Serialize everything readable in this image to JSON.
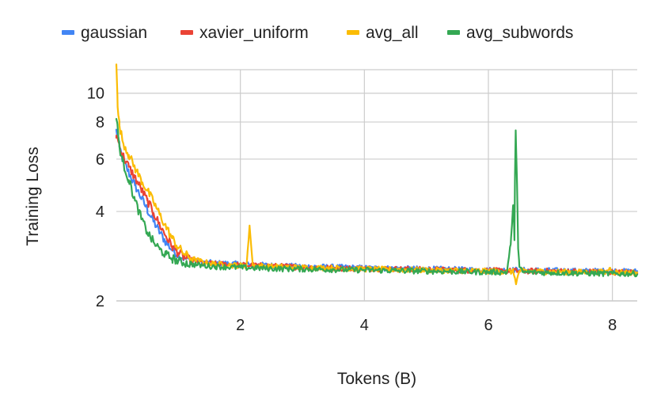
{
  "chart_data": {
    "type": "line",
    "xlabel": "Tokens (B)",
    "ylabel": "Training Loss",
    "xlim": [
      0,
      8.4
    ],
    "ylim": [
      2,
      12
    ],
    "y_scale": "log",
    "grid": true,
    "legend_position": "top",
    "x_ticks": [
      2,
      4,
      6,
      8
    ],
    "x_tick_labels": [
      "2",
      "4",
      "6",
      "8"
    ],
    "y_ticks": [
      2,
      4,
      6,
      8,
      10
    ],
    "y_tick_labels": [
      "2",
      "4",
      "6",
      "8",
      "10"
    ],
    "series": [
      {
        "name": "gaussian",
        "color": "#4285f4",
        "x": [
          0,
          0.05,
          0.1,
          0.2,
          0.3,
          0.4,
          0.5,
          0.6,
          0.7,
          0.8,
          0.9,
          1.0,
          1.1,
          1.2,
          1.4,
          1.6,
          2.0,
          2.5,
          3.0,
          3.5,
          4.0,
          4.5,
          5.0,
          5.5,
          6.0,
          6.5,
          7.0,
          7.5,
          8.0,
          8.4
        ],
        "y": [
          7.5,
          6.6,
          6.0,
          5.4,
          4.9,
          4.45,
          4.05,
          3.7,
          3.4,
          3.15,
          2.97,
          2.86,
          2.78,
          2.74,
          2.7,
          2.68,
          2.66,
          2.63,
          2.61,
          2.6,
          2.58,
          2.57,
          2.56,
          2.55,
          2.54,
          2.54,
          2.53,
          2.52,
          2.52,
          2.51
        ]
      },
      {
        "name": "xavier_uniform",
        "color": "#ea4335",
        "x": [
          0,
          0.05,
          0.1,
          0.2,
          0.3,
          0.4,
          0.5,
          0.6,
          0.7,
          0.8,
          0.9,
          1.0,
          1.1,
          1.2,
          1.4,
          1.6,
          2.0,
          2.5,
          3.0,
          3.5,
          4.0,
          4.5,
          5.0,
          5.5,
          6.0,
          6.5,
          7.0,
          7.5,
          8.0,
          8.4
        ],
        "y": [
          7.2,
          6.7,
          6.2,
          5.65,
          5.2,
          4.75,
          4.35,
          3.95,
          3.6,
          3.3,
          3.05,
          2.9,
          2.8,
          2.74,
          2.69,
          2.66,
          2.64,
          2.62,
          2.6,
          2.58,
          2.57,
          2.56,
          2.55,
          2.54,
          2.53,
          2.52,
          2.52,
          2.51,
          2.5,
          2.5
        ]
      },
      {
        "name": "avg_all",
        "color": "#fbbc04",
        "x": [
          0,
          0.02,
          0.05,
          0.1,
          0.2,
          0.3,
          0.4,
          0.5,
          0.6,
          0.7,
          0.8,
          0.9,
          1.0,
          1.1,
          1.2,
          1.4,
          1.6,
          2.0,
          2.1,
          2.15,
          2.2,
          2.5,
          3.0,
          3.5,
          4.0,
          4.5,
          5.0,
          5.5,
          6.0,
          6.4,
          6.45,
          6.5,
          7.0,
          7.5,
          7.9,
          7.95,
          8.0,
          8.4
        ],
        "y": [
          12.5,
          9.0,
          7.8,
          6.9,
          6.2,
          5.6,
          5.1,
          4.7,
          4.3,
          3.9,
          3.55,
          3.25,
          3.02,
          2.88,
          2.78,
          2.7,
          2.66,
          2.63,
          2.63,
          3.55,
          2.63,
          2.61,
          2.59,
          2.58,
          2.56,
          2.55,
          2.54,
          2.53,
          2.52,
          2.51,
          2.3,
          2.52,
          2.51,
          2.5,
          2.5,
          2.58,
          2.5,
          2.49
        ]
      },
      {
        "name": "avg_subwords",
        "color": "#34a853",
        "x": [
          0,
          0.05,
          0.1,
          0.2,
          0.3,
          0.4,
          0.5,
          0.6,
          0.7,
          0.8,
          0.9,
          1.0,
          1.2,
          1.4,
          1.6,
          2.0,
          2.5,
          3.0,
          3.5,
          4.0,
          4.5,
          5.0,
          5.5,
          6.0,
          6.3,
          6.36,
          6.4,
          6.42,
          6.44,
          6.46,
          6.48,
          6.5,
          6.55,
          7.0,
          7.5,
          8.0,
          8.4
        ],
        "y": [
          8.2,
          6.6,
          5.9,
          5.1,
          4.35,
          3.8,
          3.4,
          3.15,
          2.98,
          2.86,
          2.78,
          2.72,
          2.66,
          2.63,
          2.61,
          2.59,
          2.57,
          2.56,
          2.55,
          2.54,
          2.53,
          2.52,
          2.51,
          2.5,
          2.5,
          3.1,
          4.2,
          3.2,
          7.5,
          5.2,
          3.0,
          2.6,
          2.5,
          2.49,
          2.48,
          2.47,
          2.47
        ]
      }
    ]
  }
}
